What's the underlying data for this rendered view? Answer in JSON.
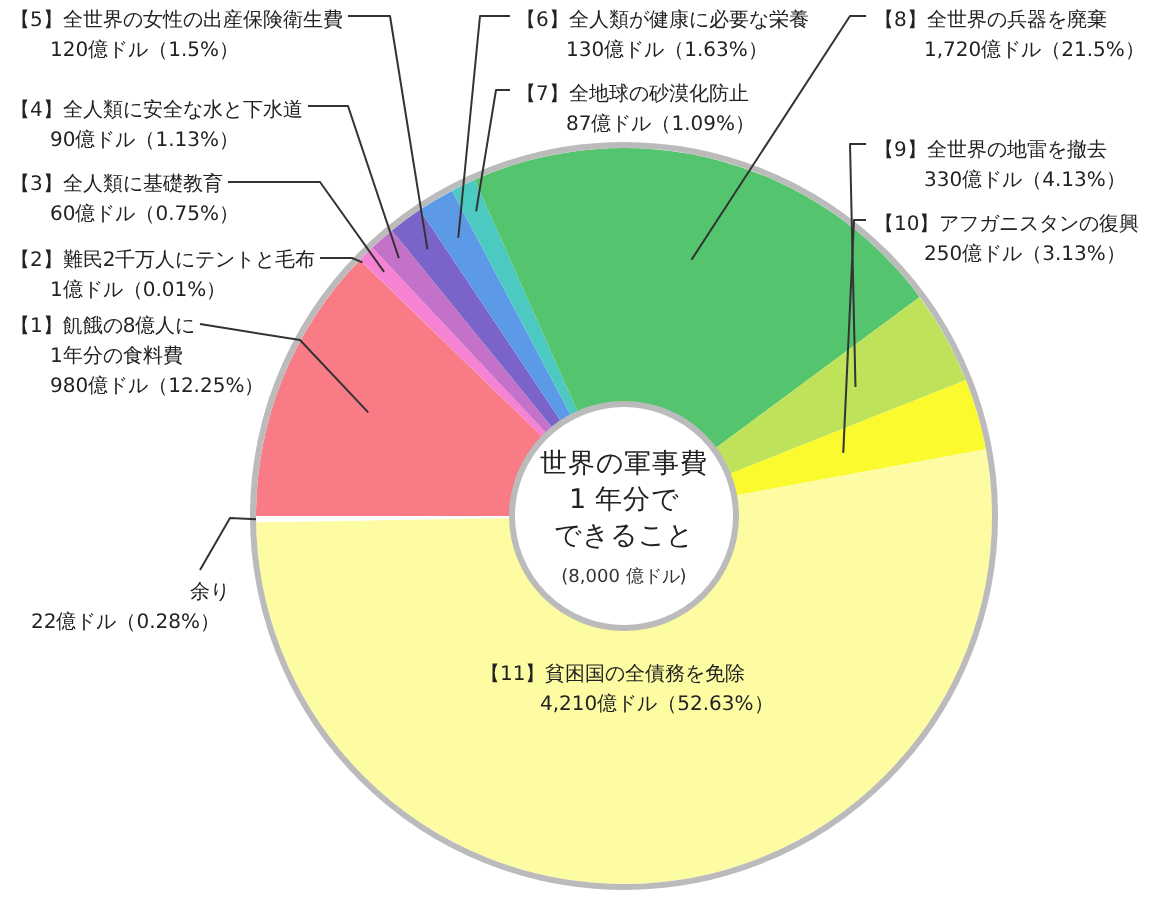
{
  "chart_data": {
    "type": "donut",
    "title": "世界の軍事費1 年分でできること",
    "subtitle": "(8,000 億ドル)",
    "categories": [
      "【1】飢餓の8億人に1年分の食料費",
      "【2】難民2千万人にテントと毛布",
      "【3】全人類に基礎教育",
      "【4】全人類に安全な水と下水道",
      "【5】全世界の女性の出産保険衛生費",
      "【6】全人類が健康に必要な栄養",
      "【7】全地球の砂漠化防止",
      "【8】全世界の兵器を廃棄",
      "【9】全世界の地雷を撤去",
      "【10】アフガニスタンの復興",
      "【11】貧困国の全債務を免除",
      "余り"
    ],
    "values": [
      980,
      1,
      60,
      90,
      120,
      130,
      87,
      1720,
      330,
      250,
      4210,
      22
    ],
    "value_labels": [
      "980億ドル（12.25%）",
      "1億ドル（0.01%）",
      "60億ドル（0.75%）",
      "90億ドル（1.13%）",
      "120億ドル（1.5%）",
      "130億ドル（1.63%）",
      "87億ドル（1.09%）",
      "1,720億ドル（21.5%）",
      "330億ドル（4.13%）",
      "250億ドル（3.13%）",
      "4,210億ドル（52.63%）",
      "22億ドル（0.28%）"
    ],
    "colors": [
      "#f87b86",
      "#ff6fa0",
      "#f582d2",
      "#c472c9",
      "#7b64c9",
      "#5c9ae8",
      "#4ccac2",
      "#55c46e",
      "#bee35b",
      "#fafa2e",
      "#fdfca2",
      "#ffffff"
    ]
  }
}
